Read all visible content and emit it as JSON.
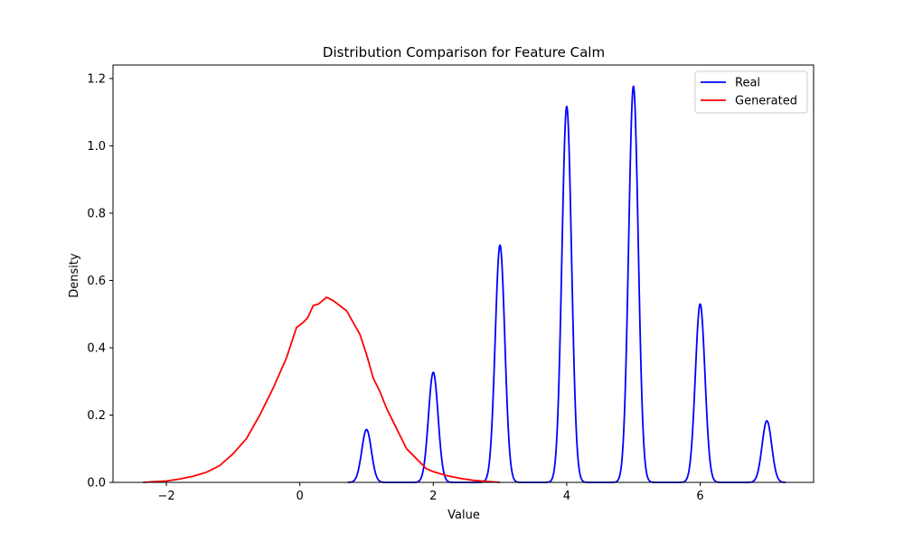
{
  "chart_data": {
    "type": "line",
    "title": "Distribution Comparison for Feature Calm",
    "xlabel": "Value",
    "ylabel": "Density",
    "xlim": [
      -2.8,
      7.7
    ],
    "ylim": [
      0,
      1.24
    ],
    "xticks": [
      -2,
      0,
      2,
      4,
      6
    ],
    "yticks": [
      0.0,
      0.2,
      0.4,
      0.6,
      0.8,
      1.0,
      1.2
    ],
    "grid": false,
    "legend_position": "top-right",
    "series": [
      {
        "name": "Real",
        "color": "#0000ff",
        "kind": "peaks",
        "range": [
          0.72,
          7.28
        ],
        "sigma": 0.072,
        "peaks": [
          {
            "x": 1,
            "y": 0.157
          },
          {
            "x": 2,
            "y": 0.327
          },
          {
            "x": 3,
            "y": 0.705
          },
          {
            "x": 4,
            "y": 1.117
          },
          {
            "x": 5,
            "y": 1.177
          },
          {
            "x": 6,
            "y": 0.53
          },
          {
            "x": 7,
            "y": 0.183
          }
        ]
      },
      {
        "name": "Generated",
        "color": "#ff0000",
        "kind": "points",
        "points": [
          [
            -2.35,
            0.0
          ],
          [
            -2.2,
            0.002
          ],
          [
            -2.0,
            0.004
          ],
          [
            -1.8,
            0.01
          ],
          [
            -1.6,
            0.018
          ],
          [
            -1.4,
            0.03
          ],
          [
            -1.2,
            0.05
          ],
          [
            -1.0,
            0.085
          ],
          [
            -0.8,
            0.13
          ],
          [
            -0.6,
            0.2
          ],
          [
            -0.4,
            0.28
          ],
          [
            -0.2,
            0.37
          ],
          [
            -0.05,
            0.46
          ],
          [
            0.05,
            0.475
          ],
          [
            0.12,
            0.49
          ],
          [
            0.2,
            0.525
          ],
          [
            0.28,
            0.53
          ],
          [
            0.4,
            0.55
          ],
          [
            0.5,
            0.54
          ],
          [
            0.6,
            0.525
          ],
          [
            0.7,
            0.51
          ],
          [
            0.8,
            0.475
          ],
          [
            0.9,
            0.44
          ],
          [
            1.0,
            0.38
          ],
          [
            1.1,
            0.31
          ],
          [
            1.2,
            0.27
          ],
          [
            1.3,
            0.22
          ],
          [
            1.4,
            0.18
          ],
          [
            1.5,
            0.14
          ],
          [
            1.6,
            0.1
          ],
          [
            1.7,
            0.08
          ],
          [
            1.8,
            0.06
          ],
          [
            1.9,
            0.04
          ],
          [
            2.0,
            0.032
          ],
          [
            2.2,
            0.02
          ],
          [
            2.4,
            0.012
          ],
          [
            2.6,
            0.006
          ],
          [
            2.8,
            0.003
          ],
          [
            3.0,
            0.0
          ]
        ]
      }
    ]
  }
}
